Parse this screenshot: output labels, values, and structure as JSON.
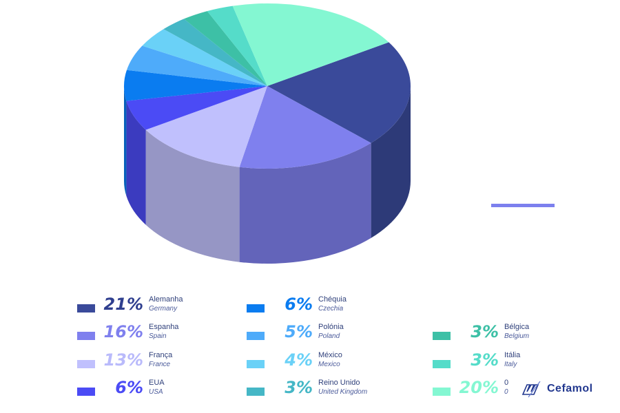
{
  "chart_data": {
    "type": "pie",
    "title": "",
    "style": "3d",
    "colors": {
      "Alemanha": "#3a4a9a",
      "Espanha": "#7f80ee",
      "França": "#c0c0fd",
      "EUA": "#4b4bf5",
      "Chéquia": "#0a7cf0",
      "Polónia": "#4eabfa",
      "México": "#6ad1f7",
      "Reino Unido": "#45b7c6",
      "Itália": "#55dcc9",
      "Bélgica": "#3dc0a6",
      "0": "#84f7d2"
    },
    "slices": [
      {
        "label": "Alemanha",
        "label_en": "Germany",
        "value": 21,
        "display": "21%"
      },
      {
        "label": "Espanha",
        "label_en": "Spain",
        "value": 16,
        "display": "16%"
      },
      {
        "label": "França",
        "label_en": "France",
        "value": 13,
        "display": "13%"
      },
      {
        "label": "EUA",
        "label_en": "USA",
        "value": 6,
        "display": "6%"
      },
      {
        "label": "Chéquia",
        "label_en": "Czechia",
        "value": 6,
        "display": "6%"
      },
      {
        "label": "Polónia",
        "label_en": "Poland",
        "value": 5,
        "display": "5%"
      },
      {
        "label": "México",
        "label_en": "Mexico",
        "value": 4,
        "display": "4%"
      },
      {
        "label": "Reino Unido",
        "label_en": "United Kingdom",
        "value": 3,
        "display": "3%"
      },
      {
        "label": "Itália",
        "label_en": "Italy",
        "value": 3,
        "display": "3%"
      },
      {
        "label": "Bélgica",
        "label_en": "Belgium",
        "value": 3,
        "display": "3%"
      },
      {
        "label": "0",
        "label_en": "0",
        "value": 20,
        "display": "20%"
      }
    ],
    "legend_placement": "bottom"
  },
  "brand": {
    "name": "Cefamol"
  }
}
